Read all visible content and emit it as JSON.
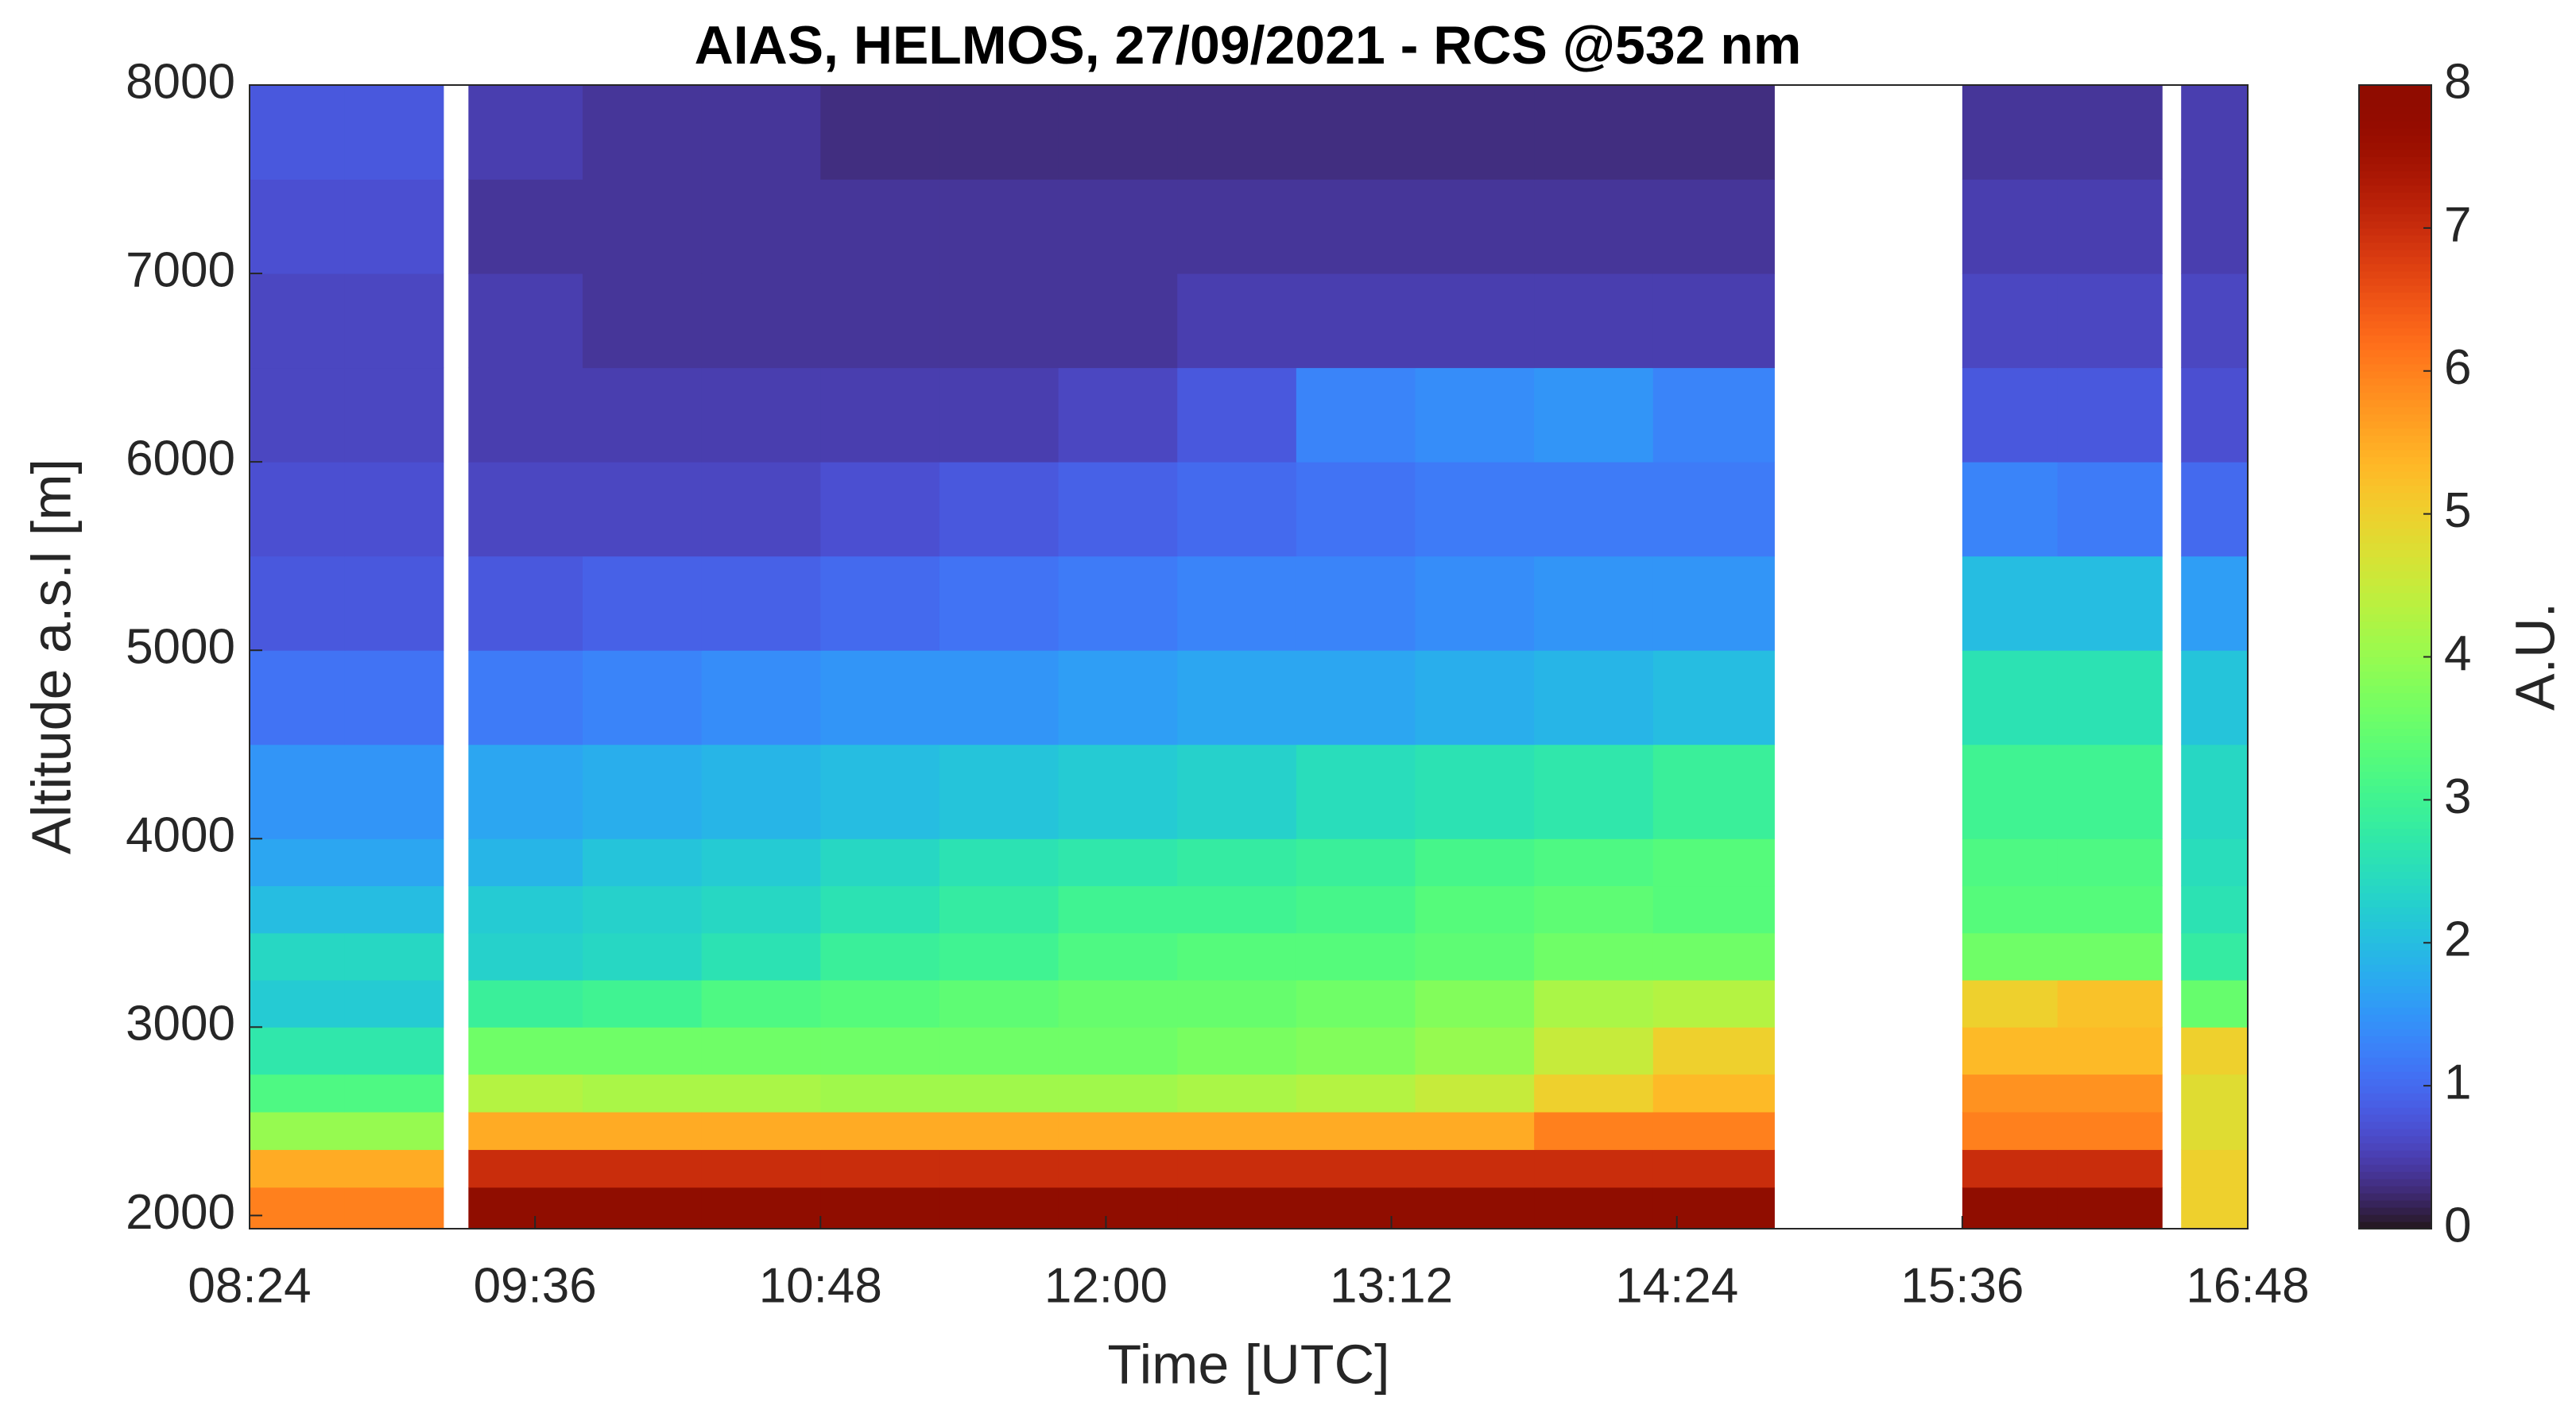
{
  "chart_data": {
    "type": "heatmap",
    "title": "AIAS, HELMOS, 27/09/2021 - RCS @532 nm",
    "xlabel": "Time [UTC]",
    "ylabel": "Altitude a.s.l [m]",
    "colorbar_label": "A.U.",
    "colormap": "turbo",
    "xlim": [
      8.4,
      16.8
    ],
    "ylim": [
      1930,
      8000
    ],
    "xticks": [
      {
        "value": 8.4,
        "label": "08:24"
      },
      {
        "value": 9.6,
        "label": "09:36"
      },
      {
        "value": 10.8,
        "label": "10:48"
      },
      {
        "value": 12,
        "label": "12:00"
      },
      {
        "value": 13.2,
        "label": "13:12"
      },
      {
        "value": 14.4,
        "label": "14:24"
      },
      {
        "value": 15.6,
        "label": "15:36"
      },
      {
        "value": 16.8,
        "label": "16:48"
      }
    ],
    "yticks": [
      2000,
      3000,
      4000,
      5000,
      6000,
      7000,
      8000
    ],
    "clim": [
      0,
      8
    ],
    "cticks": [
      0,
      1,
      2,
      3,
      4,
      5,
      6,
      7,
      8
    ],
    "x_edges": [
      8.4,
      8.8,
      9.215,
      9.32,
      9.8,
      10.3,
      10.8,
      11.3,
      11.8,
      12.3,
      12.8,
      13.3,
      13.8,
      14.3,
      14.81,
      15.6,
      16.0,
      16.44,
      16.52,
      16.8
    ],
    "y_edges": [
      1930,
      2150,
      2350,
      2550,
      2750,
      3000,
      3250,
      3500,
      3750,
      4000,
      4500,
      5000,
      5500,
      6000,
      6500,
      7000,
      7500,
      8000
    ],
    "z": [
      [
        6,
        6,
        null,
        8,
        8,
        8,
        8,
        8,
        8,
        8,
        8,
        8,
        8,
        8,
        null,
        8,
        8,
        null,
        5
      ],
      [
        5.5,
        5.5,
        null,
        7,
        7,
        7,
        7,
        7,
        7,
        7,
        7,
        7,
        7,
        7,
        null,
        7,
        7,
        null,
        5
      ],
      [
        4,
        4,
        null,
        5.5,
        5.5,
        5.5,
        5.5,
        5.5,
        5.5,
        5.5,
        5.5,
        5.5,
        6,
        6,
        null,
        6,
        6,
        null,
        4.8
      ],
      [
        3.2,
        3.2,
        null,
        4.3,
        4.2,
        4.2,
        4.1,
        4.1,
        4.1,
        4.2,
        4.3,
        4.5,
        5,
        5.3,
        null,
        5.8,
        5.8,
        null,
        4.8
      ],
      [
        2.7,
        2.7,
        null,
        3.6,
        3.6,
        3.6,
        3.6,
        3.6,
        3.6,
        3.7,
        3.8,
        4,
        4.5,
        5,
        null,
        5.3,
        5.3,
        null,
        5
      ],
      [
        2.2,
        2.2,
        null,
        2.9,
        3,
        3.2,
        3.3,
        3.4,
        3.5,
        3.5,
        3.6,
        3.8,
        4.2,
        4.3,
        null,
        5,
        5.2,
        null,
        3.5
      ],
      [
        2.4,
        2.4,
        null,
        2.3,
        2.4,
        2.6,
        2.9,
        3,
        3.2,
        3.3,
        3.3,
        3.4,
        3.6,
        3.6,
        null,
        3.6,
        3.6,
        null,
        2.8
      ],
      [
        2,
        2,
        null,
        2.2,
        2.3,
        2.4,
        2.6,
        2.8,
        3,
        3,
        3.1,
        3.3,
        3.4,
        3.3,
        null,
        3.3,
        3.3,
        null,
        2.6
      ],
      [
        1.7,
        1.7,
        null,
        1.9,
        2.1,
        2.2,
        2.4,
        2.6,
        2.7,
        2.8,
        2.9,
        3.1,
        3.2,
        3.3,
        null,
        3.2,
        3.2,
        null,
        2.5
      ],
      [
        1.5,
        1.5,
        null,
        1.7,
        1.8,
        1.9,
        2,
        2.1,
        2.2,
        2.3,
        2.5,
        2.6,
        2.7,
        2.9,
        null,
        3,
        3,
        null,
        2.4
      ],
      [
        1.1,
        1.1,
        null,
        1.2,
        1.3,
        1.4,
        1.5,
        1.5,
        1.6,
        1.7,
        1.7,
        1.8,
        1.9,
        2,
        null,
        2.6,
        2.6,
        null,
        2.1
      ],
      [
        0.8,
        0.8,
        null,
        0.8,
        0.9,
        0.9,
        1,
        1.1,
        1.2,
        1.3,
        1.3,
        1.4,
        1.5,
        1.5,
        null,
        2,
        2,
        null,
        1.6
      ],
      [
        0.7,
        0.7,
        null,
        0.6,
        0.6,
        0.6,
        0.7,
        0.8,
        0.9,
        1,
        1.1,
        1.2,
        1.2,
        1.2,
        null,
        1.3,
        1.2,
        null,
        1
      ],
      [
        0.6,
        0.6,
        null,
        0.5,
        0.5,
        0.5,
        0.5,
        0.5,
        0.6,
        0.8,
        1.3,
        1.4,
        1.5,
        1.3,
        null,
        0.8,
        0.8,
        null,
        0.7
      ],
      [
        0.6,
        0.6,
        null,
        0.5,
        0.4,
        0.4,
        0.4,
        0.4,
        0.4,
        0.5,
        0.5,
        0.5,
        0.5,
        0.5,
        null,
        0.6,
        0.6,
        null,
        0.6
      ],
      [
        0.7,
        0.7,
        null,
        0.4,
        0.4,
        0.4,
        0.4,
        0.4,
        0.4,
        0.4,
        0.4,
        0.4,
        0.4,
        0.4,
        null,
        0.5,
        0.5,
        null,
        0.5
      ],
      [
        0.8,
        0.8,
        null,
        0.5,
        0.4,
        0.4,
        0.3,
        0.3,
        0.3,
        0.3,
        0.3,
        0.3,
        0.3,
        0.3,
        null,
        0.4,
        0.4,
        null,
        0.5
      ]
    ]
  }
}
